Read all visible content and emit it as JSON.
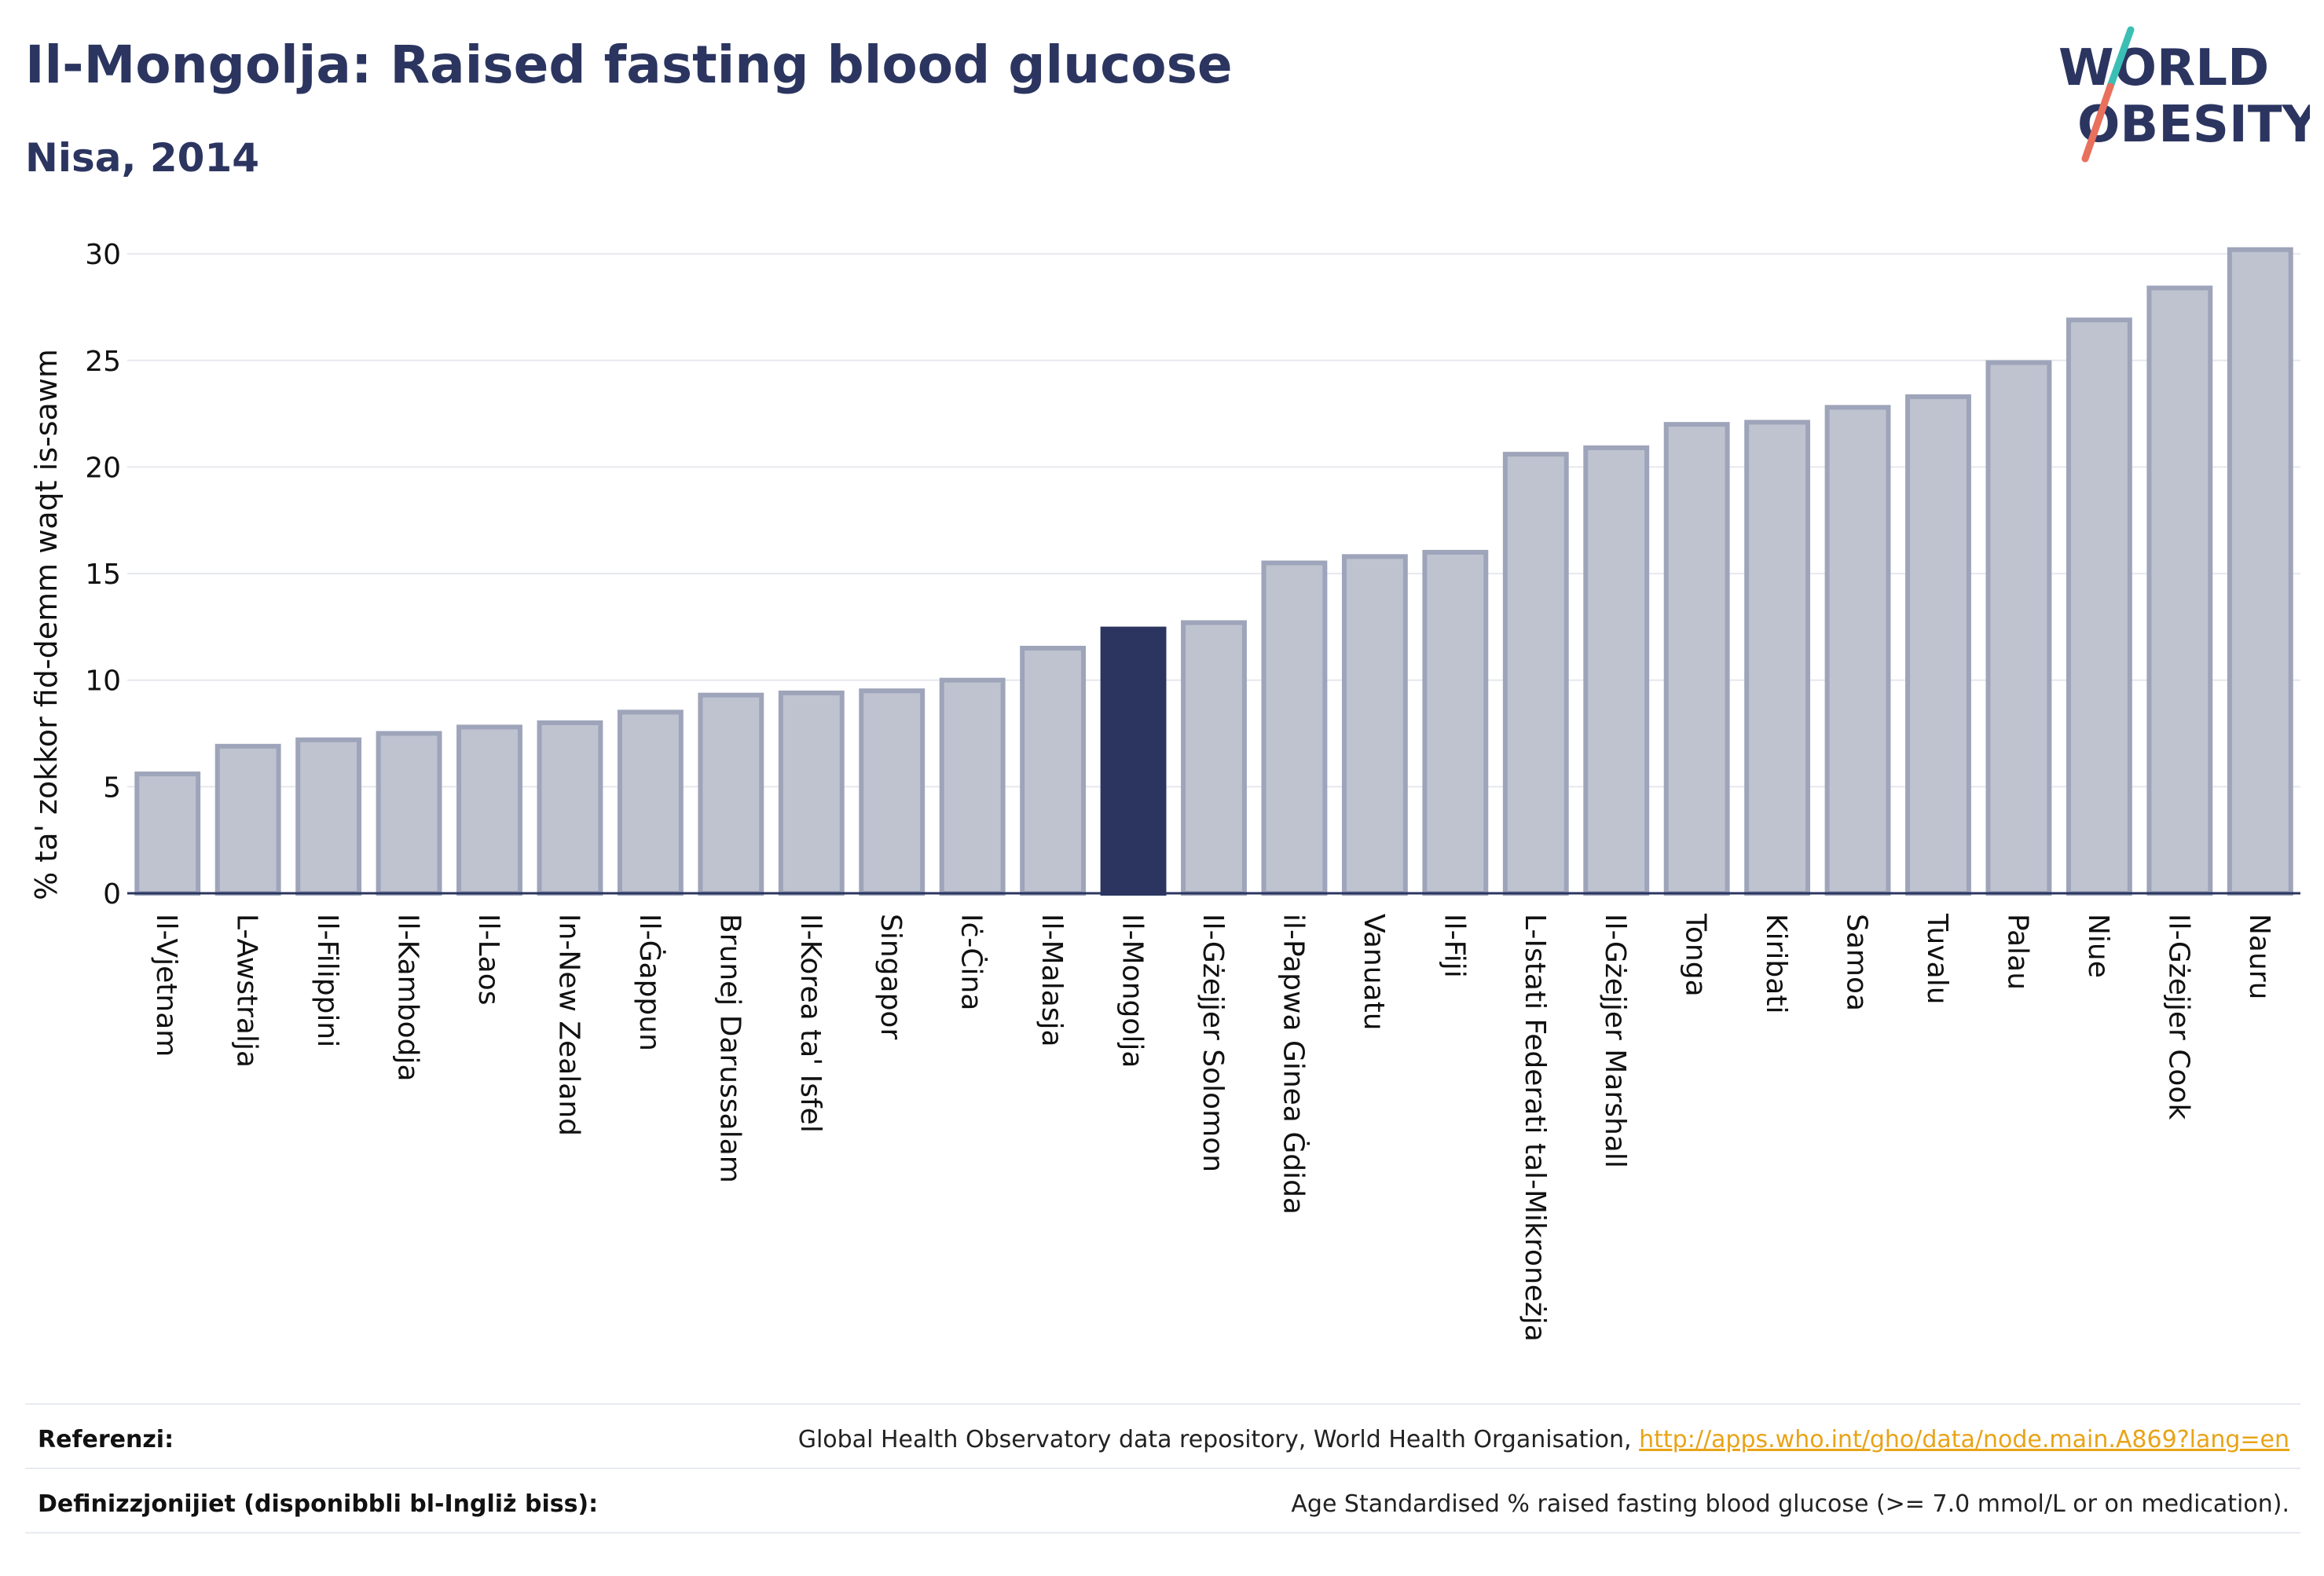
{
  "header": {
    "title": "Il-Mongolja: Raised fasting blood glucose",
    "subtitle": "Nisa, 2014"
  },
  "logo": {
    "line1": "WORLD",
    "line2": "OBESITY",
    "colors": {
      "text": "#2b3560",
      "slash_top": "#3bbfb5",
      "slash_bottom": "#e8705c"
    }
  },
  "chart_data": {
    "type": "bar",
    "ylabel": "% ta' zokkor fid-demm waqt is-sawm",
    "ylim": [
      0,
      31
    ],
    "yticks": [
      0,
      5,
      10,
      15,
      20,
      25,
      30
    ],
    "grid": true,
    "highlight_category": "Il-Mongolja",
    "colors": {
      "bar": "#bfc3d0",
      "bar_border": "#9ea4b9",
      "highlight": "#2b3560",
      "grid": "#e6e8ee"
    },
    "categories": [
      "Il-Vjetnam",
      "L-Awstralja",
      "Il-Filippini",
      "Il-Kambodja",
      "Il-Laos",
      "In-New Zealand",
      "Il-Ġappun",
      "Brunej Darussalam",
      "Il-Korea ta' Isfel",
      "Singapor",
      "Iċ-Ċina",
      "Il-Malasja",
      "Il-Mongolja",
      "Il-Gżejjer Solomon",
      "il-Papwa Ginea Ġdida",
      "Vanuatu",
      "Il-Fiji",
      "L-Istati Federati tal-Mikroneżja",
      "Il-Gżejjer Marshall",
      "Tonga",
      "Kiribati",
      "Samoa",
      "Tuvalu",
      "Palau",
      "Niue",
      "Il-Gżejjer Cook",
      "Nauru"
    ],
    "values": [
      5.6,
      6.9,
      7.2,
      7.5,
      7.8,
      8.0,
      8.5,
      9.3,
      9.4,
      9.5,
      10.0,
      11.5,
      12.4,
      12.7,
      15.5,
      15.8,
      16.0,
      20.6,
      20.9,
      22.0,
      22.1,
      22.8,
      23.3,
      24.9,
      26.9,
      28.4,
      30.2
    ]
  },
  "footer": {
    "references_label": "Referenzi:",
    "references_text": "Global Health Observatory data repository, World Health Organisation,",
    "references_link": "http://apps.who.int/gho/data/node.main.A869?lang=en",
    "definitions_label": "Definizzjonijiet (disponibbli bl-Ingliż biss):",
    "definitions_text": "Age Standardised % raised fasting blood glucose (>= 7.0 mmol/L or on medication)."
  }
}
